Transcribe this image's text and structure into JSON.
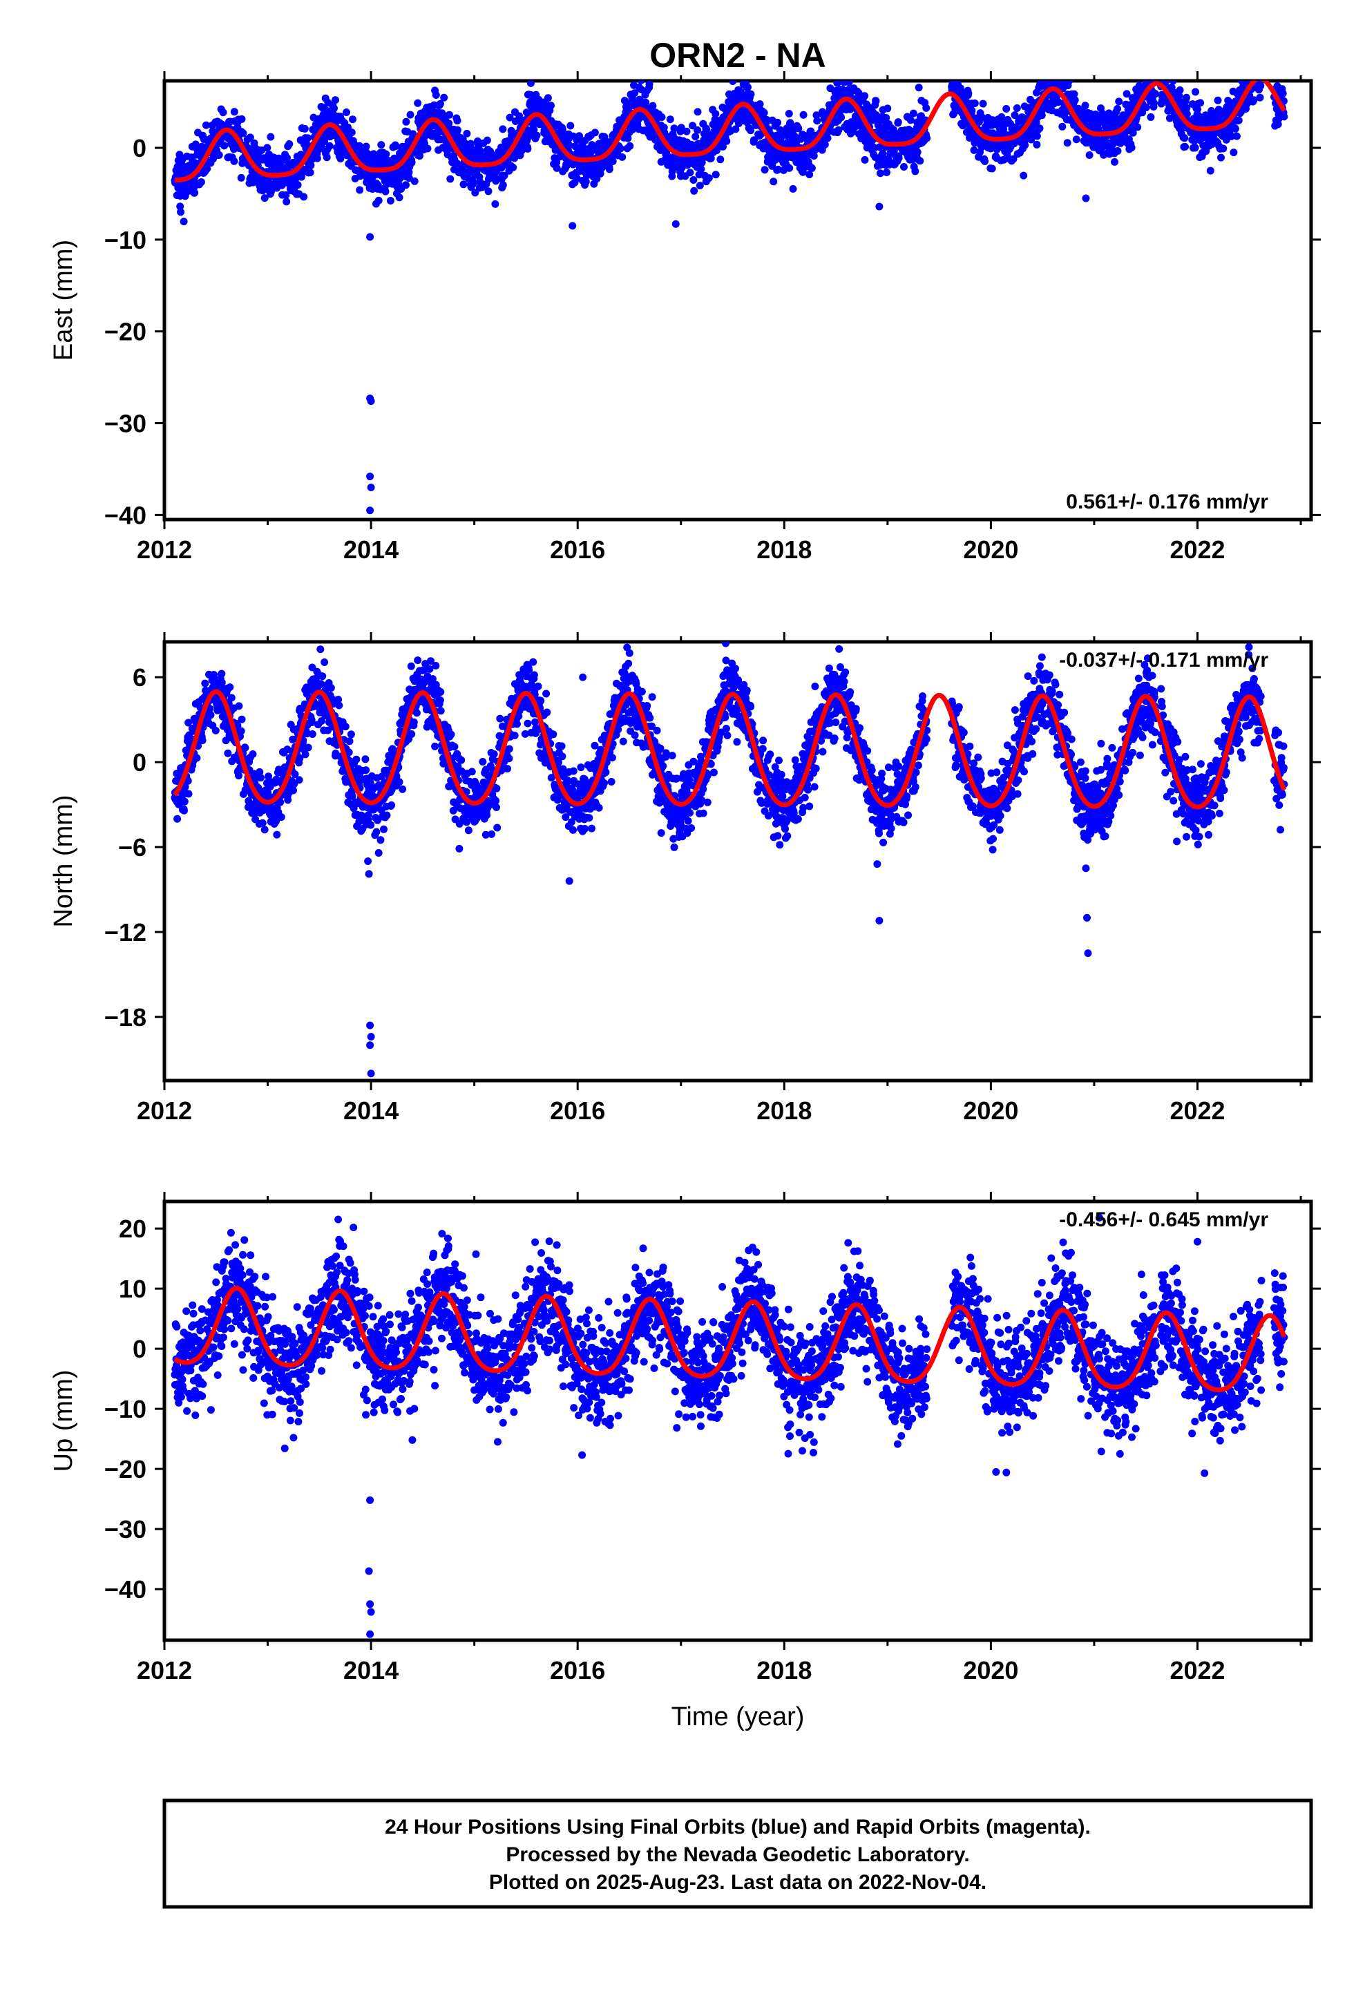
{
  "title": "ORN2 - NA",
  "x_axis_label": "Time (year)",
  "caption": [
    "24 Hour Positions Using Final Orbits (blue) and Rapid Orbits (magenta).",
    "Processed by the Nevada Geodetic Laboratory.",
    "Plotted on 2025-Aug-23. Last data on 2022-Nov-04."
  ],
  "colors": {
    "points": "#0000ff",
    "model": "#ff0000",
    "frame": "#000000"
  },
  "chart_data": [
    {
      "type": "scatter",
      "component": "East",
      "ylabel": "East (mm)",
      "xlim": [
        2012,
        2023.1
      ],
      "ylim": [
        -40.5,
        7.3
      ],
      "xticks": [
        2012,
        2014,
        2016,
        2018,
        2020,
        2022
      ],
      "yticks": [
        -40,
        -30,
        -20,
        -10,
        0
      ],
      "rate_label": "0.561+/- 0.176 mm/yr",
      "rate_position": "bottom-right",
      "data_range": [
        2012.1,
        2022.84
      ],
      "model": {
        "offset": 1.5,
        "rate": 0.561,
        "annual_amplitude": 2.6,
        "annual_peak_phase": 0.6,
        "semiannual_amplitude": 0.6,
        "start_value": -3.8,
        "end_value": 2.5
      },
      "scatter_sigma": 1.4,
      "outliers": [
        {
          "x": 2013.99,
          "y": -9.7
        },
        {
          "x": 2013.99,
          "y": -27.3
        },
        {
          "x": 2014.0,
          "y": -27.6
        },
        {
          "x": 2013.99,
          "y": -35.8
        },
        {
          "x": 2014.0,
          "y": -37.0
        },
        {
          "x": 2013.99,
          "y": -39.5
        },
        {
          "x": 2015.95,
          "y": -8.5
        },
        {
          "x": 2016.95,
          "y": -8.3
        },
        {
          "x": 2018.92,
          "y": -6.4
        },
        {
          "x": 2020.92,
          "y": -5.5
        },
        {
          "x": 2021.98,
          "y": 6.1
        }
      ]
    },
    {
      "type": "scatter",
      "component": "North",
      "ylabel": "North (mm)",
      "xlim": [
        2012,
        2023.1
      ],
      "ylim": [
        -22.5,
        8.5
      ],
      "xticks": [
        2012,
        2014,
        2016,
        2018,
        2020,
        2022
      ],
      "yticks": [
        -18,
        -12,
        -6,
        0,
        6
      ],
      "rate_label": "-0.037+/- 0.171 mm/yr",
      "rate_position": "top-right",
      "data_range": [
        2012.1,
        2022.84
      ],
      "model": {
        "offset": 0.5,
        "rate": -0.037,
        "annual_amplitude": 3.9,
        "annual_peak_phase": 0.5,
        "semiannual_amplitude": 0.4,
        "start_value": -1.3,
        "end_value": -2.6
      },
      "scatter_sigma": 1.2,
      "outliers": [
        {
          "x": 2013.97,
          "y": -7.0
        },
        {
          "x": 2013.98,
          "y": -7.9
        },
        {
          "x": 2013.99,
          "y": -18.6
        },
        {
          "x": 2014.0,
          "y": -19.4
        },
        {
          "x": 2013.99,
          "y": -20.0
        },
        {
          "x": 2014.0,
          "y": -22.0
        },
        {
          "x": 2015.92,
          "y": -8.4
        },
        {
          "x": 2016.05,
          "y": 6.0
        },
        {
          "x": 2018.9,
          "y": -7.2
        },
        {
          "x": 2018.92,
          "y": -11.2
        },
        {
          "x": 2020.92,
          "y": -7.5
        },
        {
          "x": 2020.93,
          "y": -11.0
        },
        {
          "x": 2020.94,
          "y": -13.5
        },
        {
          "x": 2021.8,
          "y": -5.6
        }
      ]
    },
    {
      "type": "scatter",
      "component": "Up",
      "ylabel": "Up (mm)",
      "xlim": [
        2012,
        2023.1
      ],
      "ylim": [
        -48.5,
        24.5
      ],
      "xticks": [
        2012,
        2014,
        2016,
        2018,
        2020,
        2022
      ],
      "yticks": [
        -40,
        -30,
        -20,
        -10,
        0,
        10,
        20
      ],
      "rate_label": "-0.456+/- 0.645 mm/yr",
      "rate_position": "top-right",
      "data_range": [
        2012.1,
        2022.84
      ],
      "model": {
        "offset": 0.6,
        "rate": -0.456,
        "annual_amplitude": 6.3,
        "annual_peak_phase": 0.7,
        "semiannual_amplitude": 1.0,
        "start_value": -1.8,
        "end_value": 1.5
      },
      "scatter_sigma": 4.2,
      "outliers": [
        {
          "x": 2013.95,
          "y": -11.0
        },
        {
          "x": 2013.99,
          "y": -25.2
        },
        {
          "x": 2013.98,
          "y": -37.0
        },
        {
          "x": 2013.99,
          "y": -42.5
        },
        {
          "x": 2014.0,
          "y": -43.8
        },
        {
          "x": 2013.99,
          "y": -47.5
        },
        {
          "x": 2012.98,
          "y": 12.0
        },
        {
          "x": 2013.25,
          "y": -14.8
        },
        {
          "x": 2020.05,
          "y": -20.5
        },
        {
          "x": 2020.15,
          "y": -20.6
        },
        {
          "x": 2021.05,
          "y": 21.8
        },
        {
          "x": 2022.0,
          "y": 17.8
        },
        {
          "x": 2021.25,
          "y": -17.5
        }
      ]
    }
  ]
}
